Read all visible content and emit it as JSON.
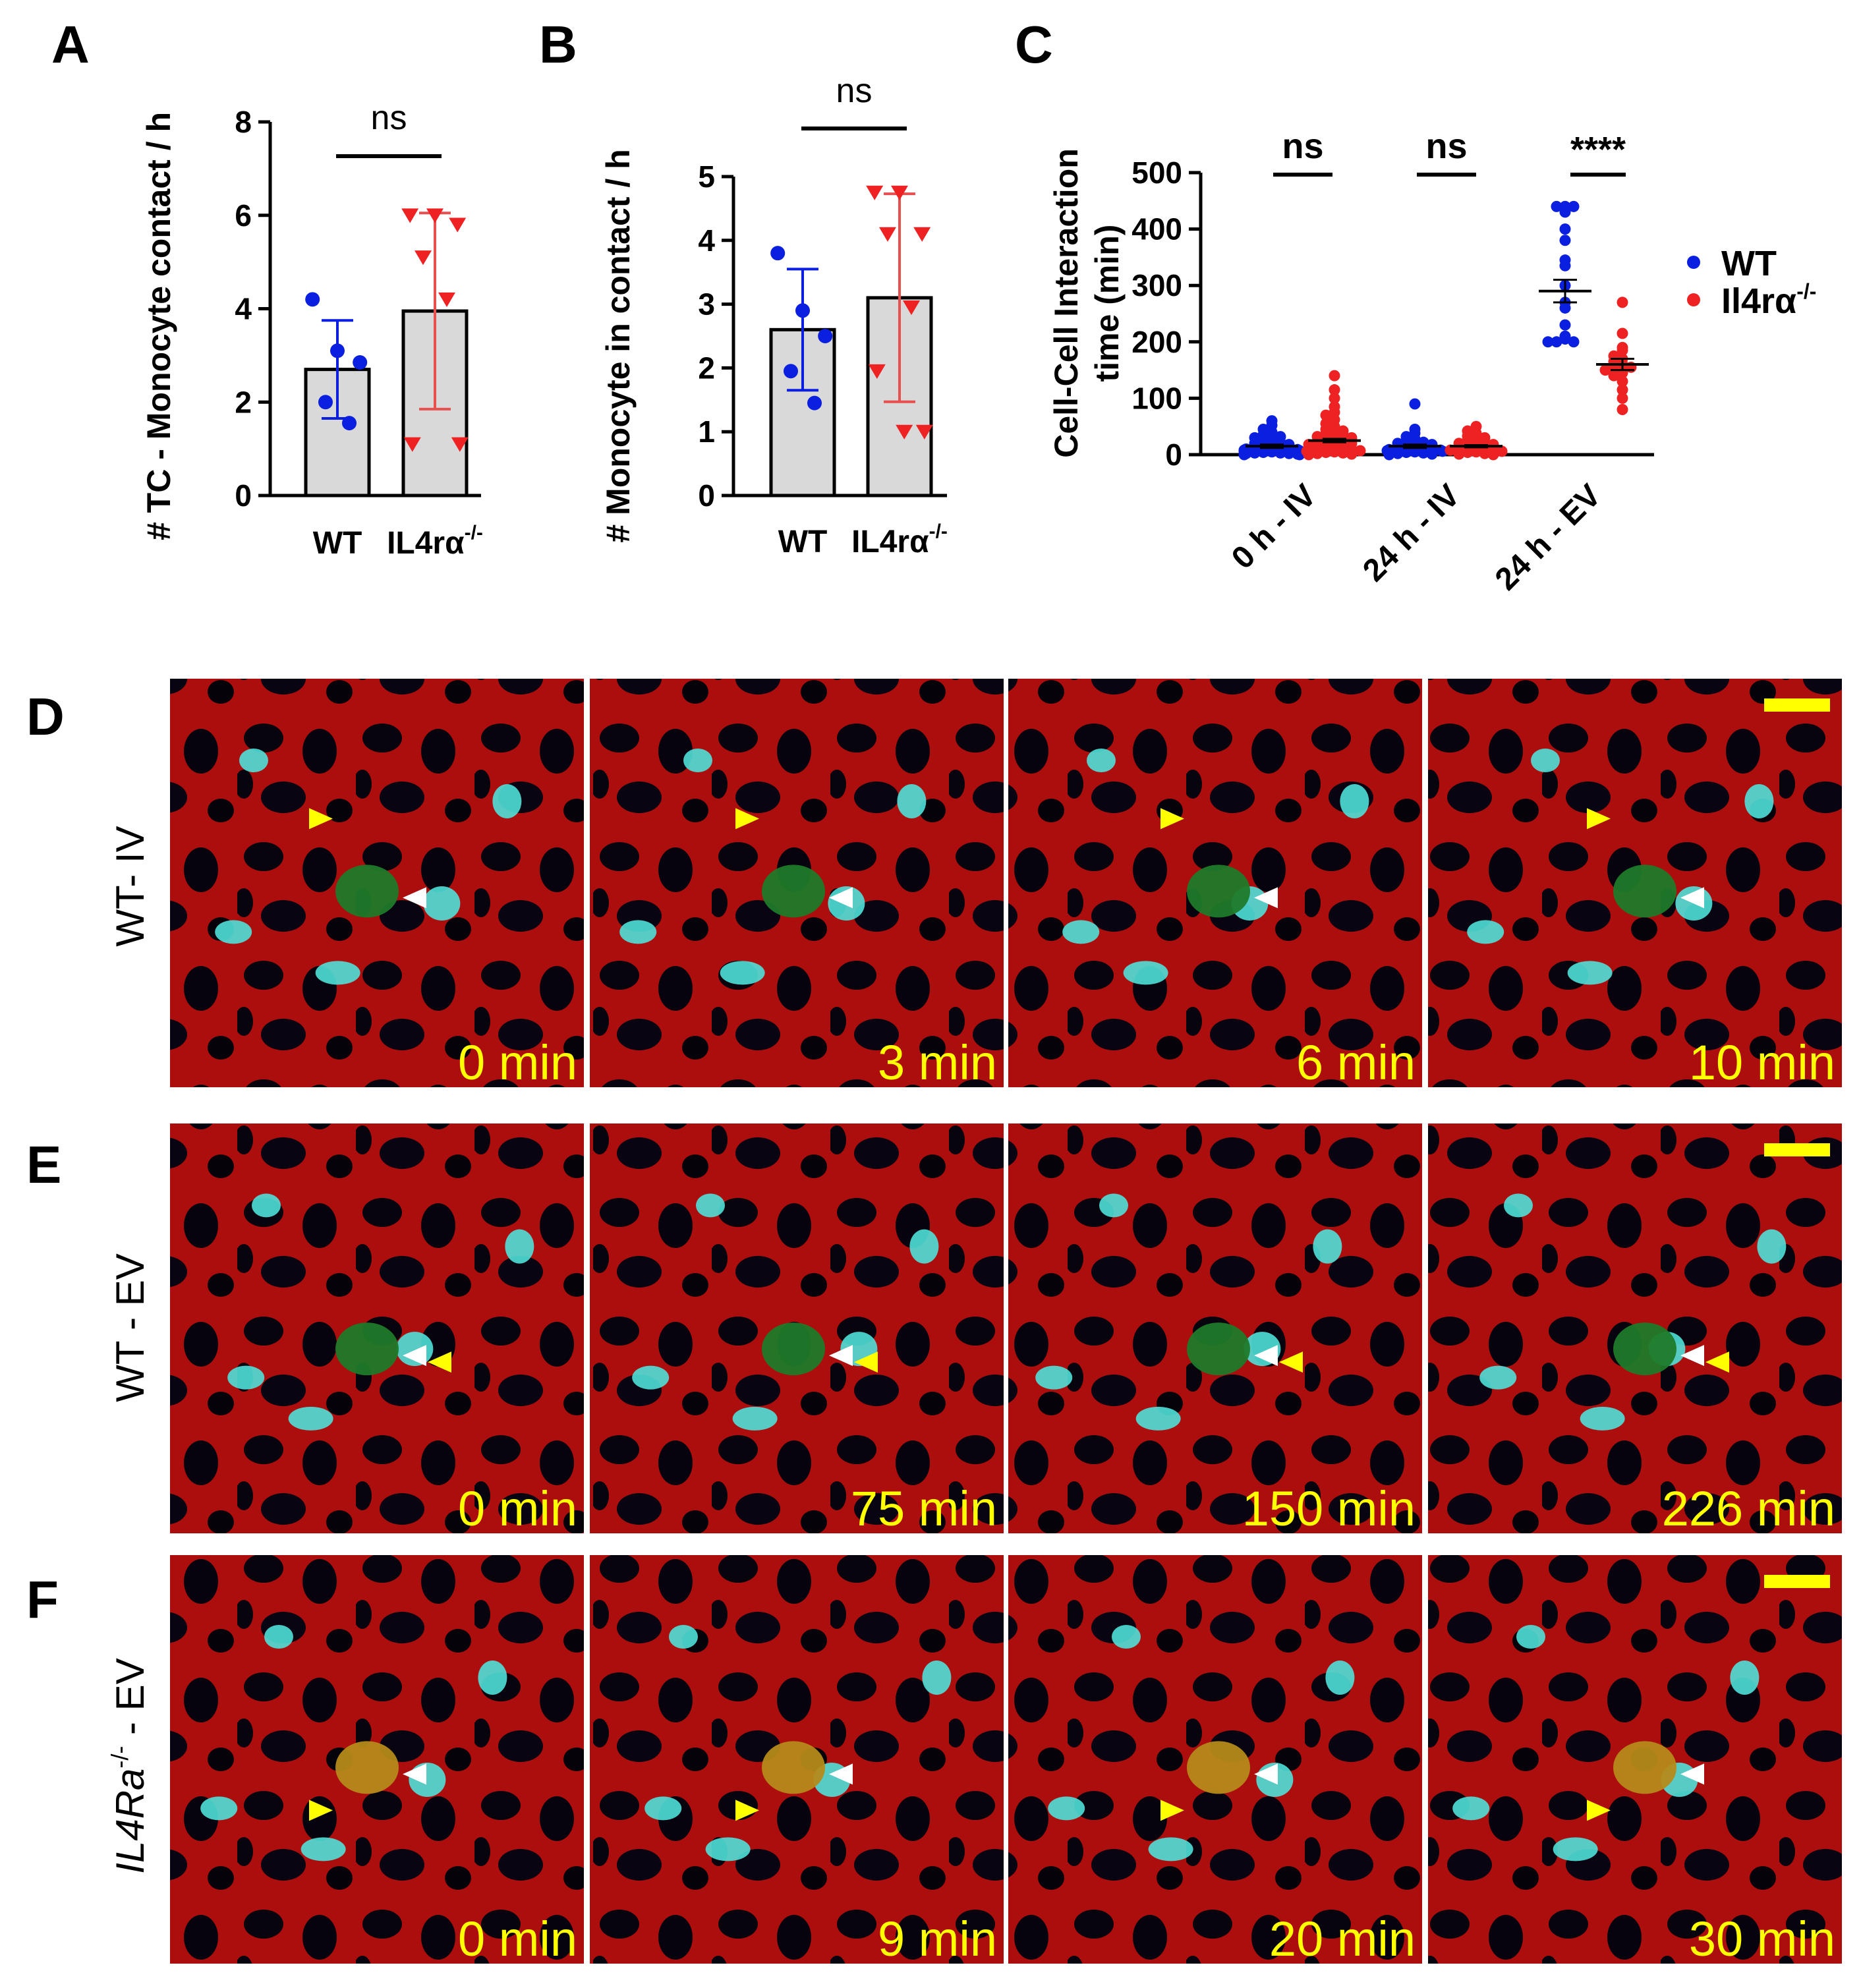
{
  "colors": {
    "wt": "#0a1fe0",
    "ko": "#ee2222",
    "ko_bar": "#e85050",
    "bar_fill": "#d9d9d9",
    "arrow_yellow": "#ffff00",
    "arrow_white": "#ffffff",
    "scale_bar": "#ffff00"
  },
  "panel_A": {
    "label": "A",
    "ylabel": "# TC - Monocyte contact / h",
    "significance": "ns",
    "categories": [
      "WT",
      "IL4rα"
    ],
    "ko_superscript": "-/-",
    "yticks": [
      "0",
      "2",
      "4",
      "6",
      "8"
    ]
  },
  "panel_B": {
    "label": "B",
    "ylabel": "# Monocyte in contact / h",
    "significance": "ns",
    "categories": [
      "WT",
      "IL4rα"
    ],
    "ko_superscript": "-/-",
    "yticks": [
      "0",
      "1",
      "2",
      "3",
      "4",
      "5"
    ]
  },
  "panel_C": {
    "label": "C",
    "ylabel_line1": "Cell-Cell Interaction",
    "ylabel_line2": "time (min)",
    "categories": [
      "0 h - IV",
      "24 h - IV",
      "24 h - EV"
    ],
    "significance": [
      "ns",
      "ns",
      "****"
    ],
    "yticks": [
      "0",
      "100",
      "200",
      "300",
      "400",
      "500"
    ],
    "legend": [
      {
        "label": "WT"
      },
      {
        "label": "Il4rα",
        "superscript": "-/-"
      }
    ]
  },
  "chart_data": [
    {
      "type": "bar",
      "categories": [
        "WT",
        "IL4rα-/-"
      ],
      "ylabel": "# TC - Monocyte contact / h",
      "ylim": [
        0,
        8
      ],
      "series": [
        {
          "name": "WT",
          "mean": 2.7,
          "sd": 1.05,
          "points": [
            4.2,
            3.1,
            2.85,
            2.0,
            1.55
          ]
        },
        {
          "name": "IL4rα-/-",
          "mean": 3.95,
          "sd": 2.1,
          "points": [
            6.0,
            6.0,
            5.8,
            5.1,
            4.2,
            1.1,
            1.1
          ]
        }
      ],
      "annotation": "ns"
    },
    {
      "type": "bar",
      "categories": [
        "WT",
        "IL4rα-/-"
      ],
      "ylabel": "# Monocyte in contact / h",
      "ylim": [
        0,
        5
      ],
      "series": [
        {
          "name": "WT",
          "mean": 2.6,
          "sd": 0.95,
          "points": [
            3.8,
            2.9,
            2.5,
            1.95,
            1.45
          ]
        },
        {
          "name": "IL4rα-/-",
          "mean": 3.1,
          "sd": 1.63,
          "points": [
            4.75,
            4.75,
            4.1,
            4.1,
            2.95,
            1.95,
            1.0,
            1.0
          ]
        }
      ],
      "annotation": "ns"
    },
    {
      "type": "scatter",
      "categories": [
        "0 h - IV",
        "24 h - IV",
        "24 h - EV"
      ],
      "ylabel": "Cell-Cell Interaction time (min)",
      "ylim": [
        0,
        500
      ],
      "series": [
        {
          "name": "WT",
          "means": [
            15,
            15,
            290
          ],
          "sems": [
            3,
            3,
            20
          ],
          "points": [
            [
              60,
              52,
              45,
              40,
              35,
              32,
              30,
              28,
              25,
              22,
              20,
              18,
              16,
              15,
              14,
              12,
              11,
              10,
              9,
              8,
              7,
              6,
              5,
              4,
              3,
              3,
              2,
              2,
              1,
              1,
              0,
              0
            ],
            [
              90,
              45,
              38,
              32,
              28,
              25,
              22,
              20,
              18,
              16,
              14,
              12,
              11,
              10,
              9,
              8,
              7,
              6,
              5,
              4,
              3,
              2,
              1,
              0
            ],
            [
              440,
              440,
              440,
              430,
              400,
              380,
              345,
              335,
              300,
              270,
              260,
              230,
              210,
              205,
              200,
              200,
              200
            ]
          ]
        },
        {
          "name": "Il4rα-/-",
          "means": [
            25,
            15,
            160
          ],
          "sems": [
            3,
            2,
            10
          ],
          "points": [
            [
              140,
              115,
              100,
              85,
              75,
              70,
              62,
              55,
              50,
              45,
              42,
              40,
              38,
              35,
              32,
              30,
              28,
              26,
              24,
              22,
              20,
              18,
              16,
              14,
              12,
              10,
              9,
              8,
              7,
              6,
              5,
              4,
              3,
              2,
              1,
              0
            ],
            [
              50,
              42,
              38,
              33,
              30,
              27,
              25,
              22,
              20,
              18,
              16,
              14,
              12,
              10,
              9,
              8,
              6,
              5,
              4,
              2,
              1,
              0
            ],
            [
              270,
              215,
              190,
              185,
              175,
              170,
              165,
              160,
              158,
              155,
              150,
              145,
              140,
              130,
              115,
              100,
              80
            ]
          ]
        }
      ],
      "annotations": [
        "ns",
        "ns",
        "****"
      ]
    }
  ],
  "panel_D": {
    "label": "D",
    "row_label": "WT- IV",
    "times": [
      "0 min",
      "3 min",
      "6 min",
      "10 min"
    ]
  },
  "panel_E": {
    "label": "E",
    "row_label": "WT - EV",
    "times": [
      "0 min",
      "75 min",
      "150 min",
      "226 min"
    ]
  },
  "panel_F": {
    "label": "F",
    "row_label_main": "IL4Ra",
    "row_label_sup": "-/-",
    "row_label_tail": " - EV",
    "times": [
      "0 min",
      "9 min",
      "20 min",
      "30 min"
    ]
  }
}
